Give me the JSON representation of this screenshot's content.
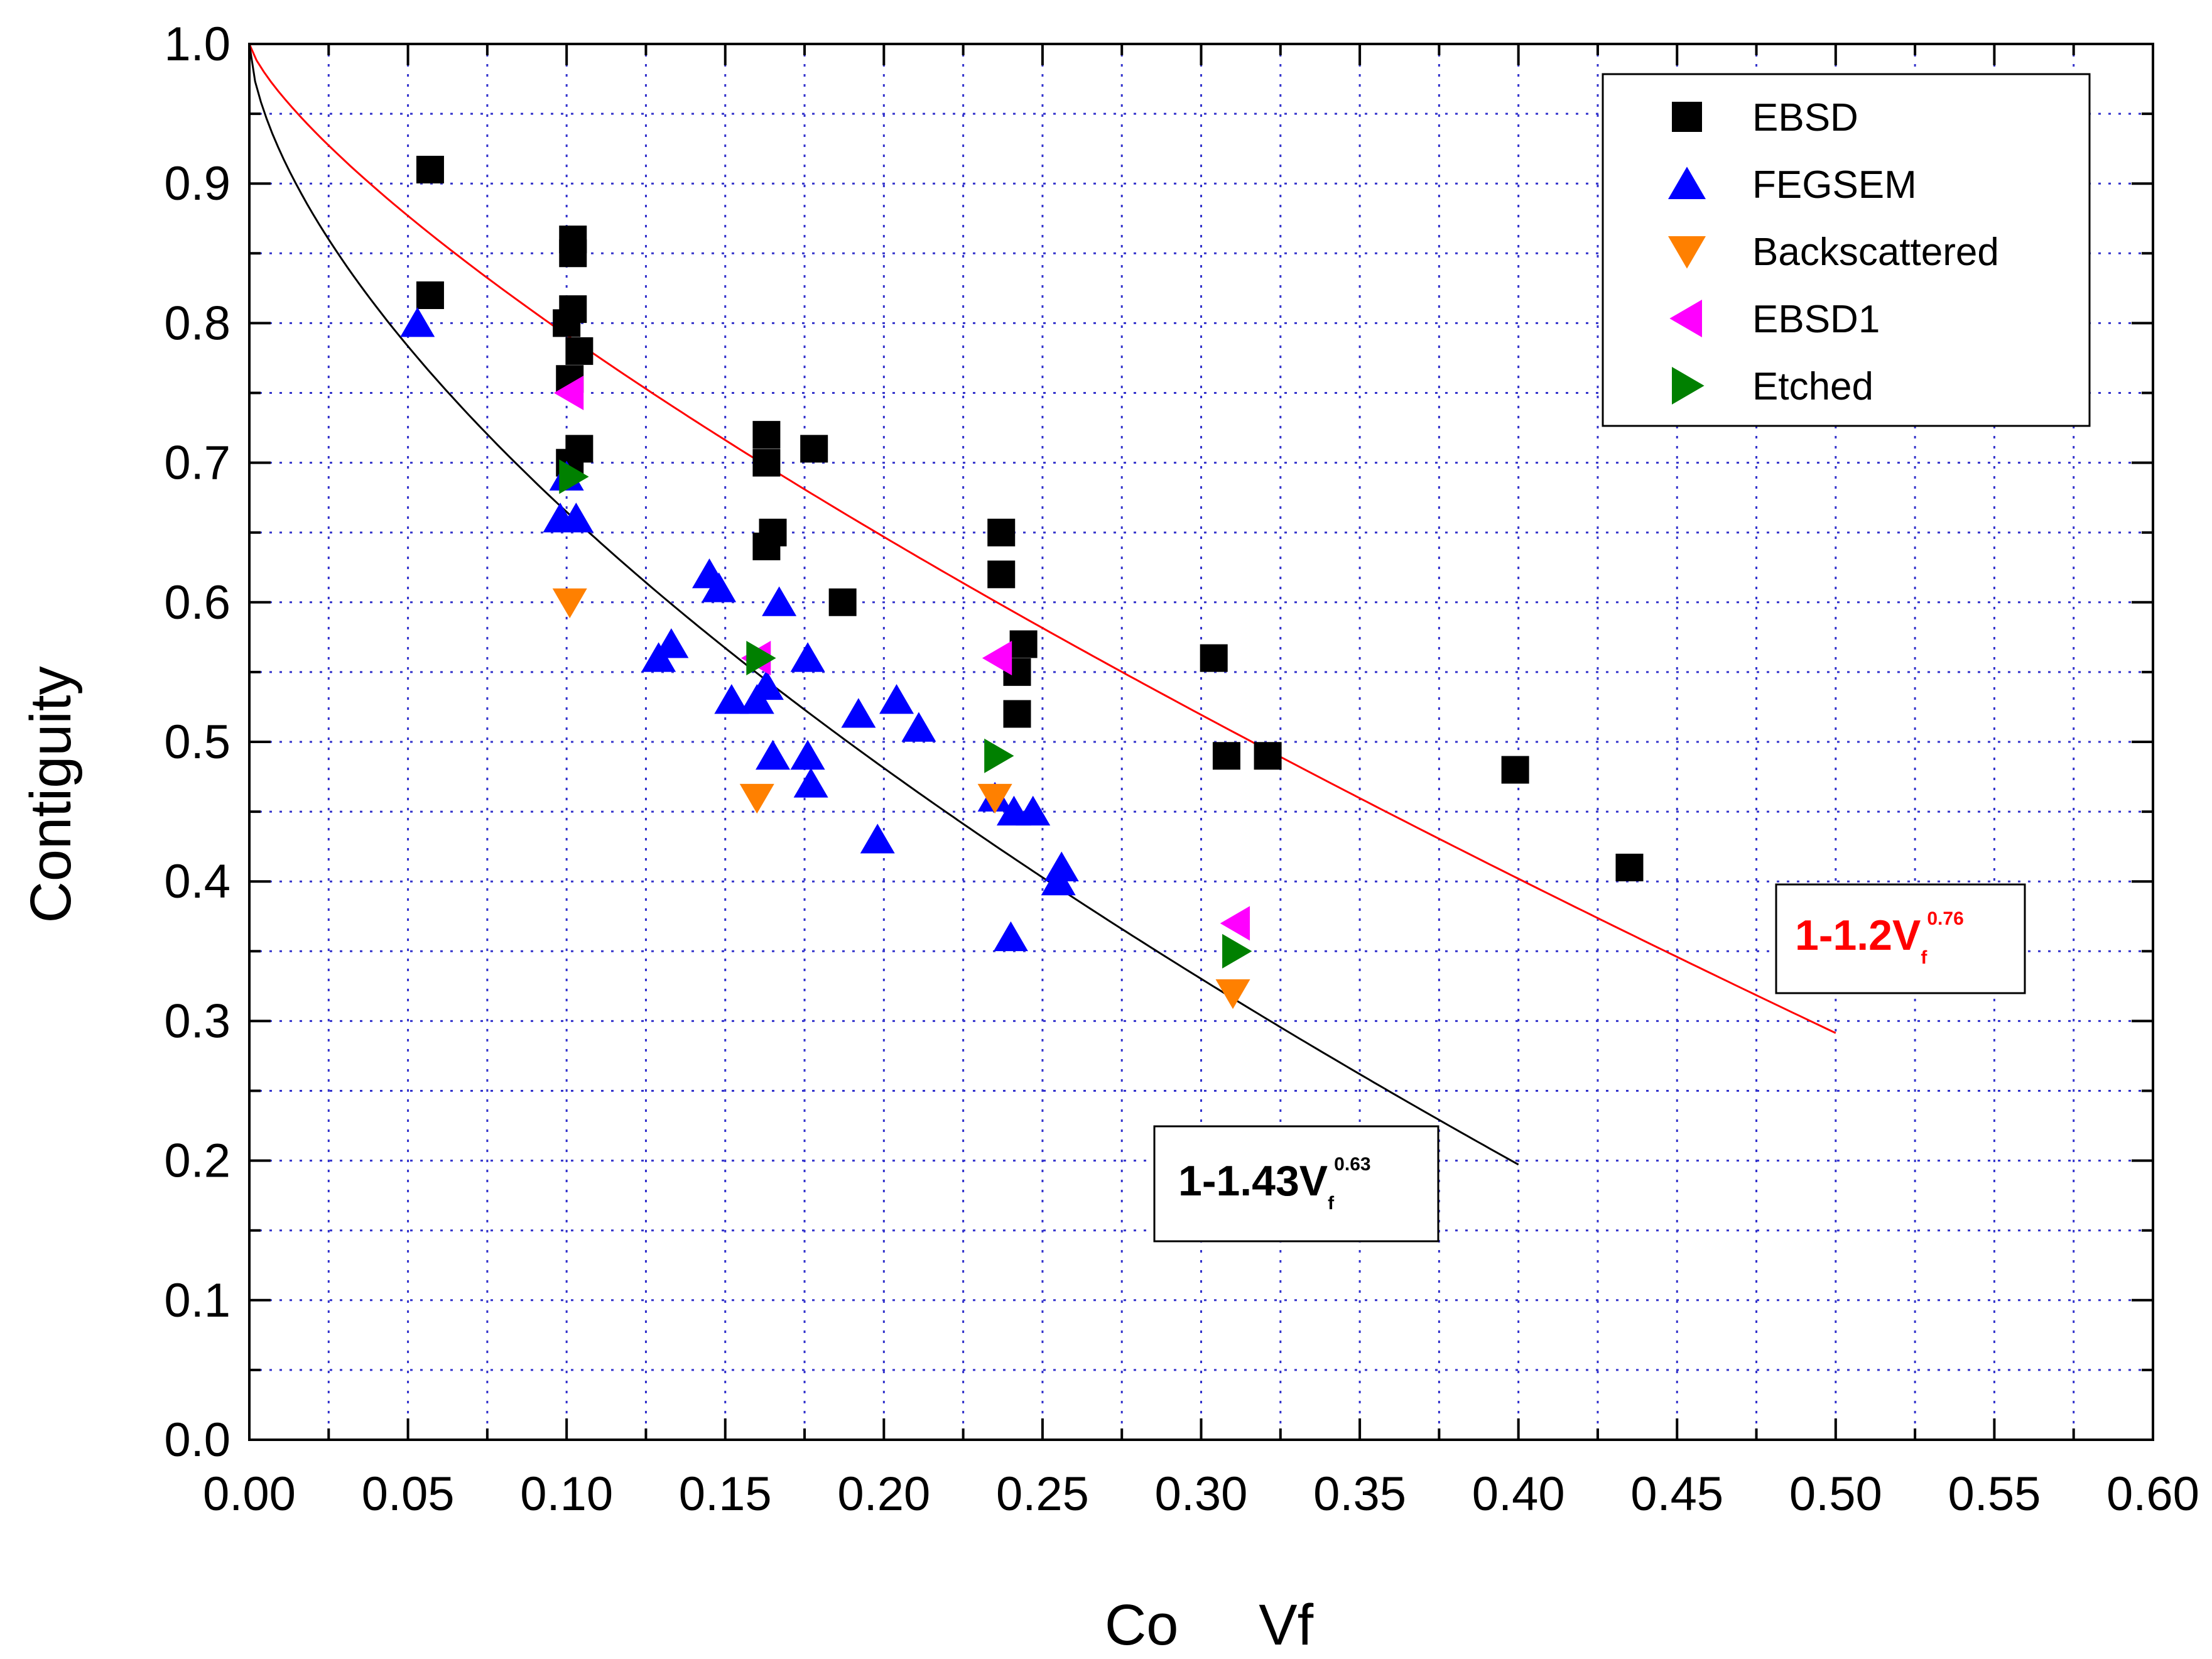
{
  "chart_data": {
    "type": "scatter",
    "title": "",
    "xlabel": "Co     Vf",
    "ylabel": "Contiguity",
    "xlim": [
      0.0,
      0.6
    ],
    "ylim": [
      0.0,
      1.0
    ],
    "grid": true,
    "legend_position": "top-right",
    "x_ticks": [
      "0.00",
      "0.05",
      "0.10",
      "0.15",
      "0.20",
      "0.25",
      "0.30",
      "0.35",
      "0.40",
      "0.45",
      "0.50",
      "0.55",
      "0.60"
    ],
    "y_ticks": [
      "0.0",
      "0.1",
      "0.2",
      "0.3",
      "0.4",
      "0.5",
      "0.6",
      "0.7",
      "0.8",
      "0.9",
      "1.0"
    ],
    "colors": {
      "EBSD": "#000000",
      "FEGSEM": "#0000ff",
      "Backscattered": "#ff8000",
      "EBSD1": "#ff00ff",
      "Etched": "#008000",
      "fit_red": "#ff0000",
      "fit_black": "#000000",
      "grid": "#3333cc"
    },
    "series": [
      {
        "name": "EBSD",
        "marker": "square",
        "points": [
          [
            0.057,
            0.91
          ],
          [
            0.057,
            0.82
          ],
          [
            0.102,
            0.86
          ],
          [
            0.102,
            0.85
          ],
          [
            0.102,
            0.81
          ],
          [
            0.1,
            0.8
          ],
          [
            0.104,
            0.78
          ],
          [
            0.101,
            0.76
          ],
          [
            0.104,
            0.71
          ],
          [
            0.101,
            0.7
          ],
          [
            0.163,
            0.72
          ],
          [
            0.163,
            0.7
          ],
          [
            0.178,
            0.71
          ],
          [
            0.165,
            0.65
          ],
          [
            0.163,
            0.64
          ],
          [
            0.187,
            0.6
          ],
          [
            0.237,
            0.65
          ],
          [
            0.237,
            0.62
          ],
          [
            0.244,
            0.57
          ],
          [
            0.242,
            0.55
          ],
          [
            0.242,
            0.52
          ],
          [
            0.304,
            0.56
          ],
          [
            0.308,
            0.49
          ],
          [
            0.321,
            0.49
          ],
          [
            0.399,
            0.48
          ],
          [
            0.435,
            0.41
          ]
        ]
      },
      {
        "name": "FEGSEM",
        "marker": "triangle-up",
        "points": [
          [
            0.053,
            0.8
          ],
          [
            0.1,
            0.69
          ],
          [
            0.098,
            0.66
          ],
          [
            0.103,
            0.66
          ],
          [
            0.145,
            0.62
          ],
          [
            0.148,
            0.61
          ],
          [
            0.167,
            0.6
          ],
          [
            0.129,
            0.56
          ],
          [
            0.133,
            0.57
          ],
          [
            0.176,
            0.56
          ],
          [
            0.152,
            0.53
          ],
          [
            0.16,
            0.53
          ],
          [
            0.163,
            0.54
          ],
          [
            0.165,
            0.49
          ],
          [
            0.176,
            0.49
          ],
          [
            0.177,
            0.47
          ],
          [
            0.192,
            0.52
          ],
          [
            0.204,
            0.53
          ],
          [
            0.211,
            0.51
          ],
          [
            0.198,
            0.43
          ],
          [
            0.235,
            0.46
          ],
          [
            0.241,
            0.45
          ],
          [
            0.247,
            0.45
          ],
          [
            0.256,
            0.41
          ],
          [
            0.255,
            0.4
          ],
          [
            0.24,
            0.36
          ]
        ]
      },
      {
        "name": "Backscattered",
        "marker": "triangle-down",
        "points": [
          [
            0.101,
            0.6
          ],
          [
            0.16,
            0.46
          ],
          [
            0.235,
            0.46
          ],
          [
            0.31,
            0.32
          ]
        ]
      },
      {
        "name": "EBSD1",
        "marker": "triangle-left",
        "points": [
          [
            0.101,
            0.75
          ],
          [
            0.16,
            0.56
          ],
          [
            0.236,
            0.56
          ],
          [
            0.311,
            0.37
          ]
        ]
      },
      {
        "name": "Etched",
        "marker": "triangle-right",
        "points": [
          [
            0.102,
            0.69
          ],
          [
            0.161,
            0.56
          ],
          [
            0.236,
            0.49
          ],
          [
            0.311,
            0.35
          ]
        ]
      }
    ],
    "curves": [
      {
        "name": "red-fit",
        "formula": "1-1.2V^0.76",
        "coef": 1.2,
        "exp": 0.76,
        "x_range": [
          0.0,
          0.5
        ]
      },
      {
        "name": "black-fit",
        "formula": "1-1.43V^0.63",
        "coef": 1.43,
        "exp": 0.63,
        "x_range": [
          0.0,
          0.4
        ]
      }
    ],
    "annotations": {
      "red": {
        "main": "1-1.2V",
        "sub": "f",
        "sup": "0.76"
      },
      "black": {
        "main": "1-1.43V",
        "sub": "f",
        "sup": "0.63"
      }
    }
  }
}
